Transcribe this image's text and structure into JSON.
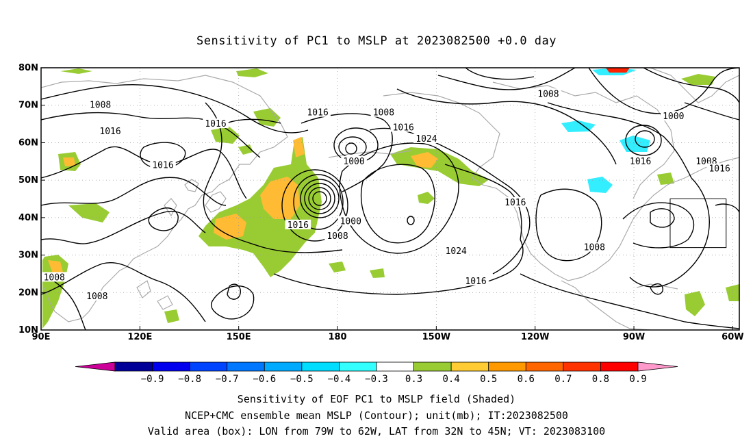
{
  "title": "Sensitivity of PC1 to MSLP at 2023082500 +0.0 day",
  "map": {
    "lon_range": [
      90,
      302
    ],
    "lat_range": [
      10,
      80
    ],
    "x_ticks": [
      {
        "lon": 90,
        "label": "90E"
      },
      {
        "lon": 120,
        "label": "120E"
      },
      {
        "lon": 150,
        "label": "150E"
      },
      {
        "lon": 180,
        "label": "180"
      },
      {
        "lon": 210,
        "label": "150W"
      },
      {
        "lon": 240,
        "label": "120W"
      },
      {
        "lon": 270,
        "label": "90W"
      },
      {
        "lon": 300,
        "label": "60W"
      }
    ],
    "y_ticks": [
      {
        "lat": 80,
        "label": "80N"
      },
      {
        "lat": 70,
        "label": "70N"
      },
      {
        "lat": 60,
        "label": "60N"
      },
      {
        "lat": 50,
        "label": "50N"
      },
      {
        "lat": 40,
        "label": "40N"
      },
      {
        "lat": 30,
        "label": "30N"
      },
      {
        "lat": 20,
        "label": "20N"
      },
      {
        "lat": 10,
        "label": "10N"
      }
    ],
    "valid_box": {
      "lon": [
        281,
        298
      ],
      "lat": [
        32,
        45
      ]
    },
    "contour_labels": [
      {
        "lon": 108,
        "lat": 70,
        "text": "1008"
      },
      {
        "lon": 111,
        "lat": 63,
        "text": "1016"
      },
      {
        "lon": 143,
        "lat": 65,
        "text": "1016"
      },
      {
        "lon": 127,
        "lat": 54,
        "text": "1016"
      },
      {
        "lon": 94,
        "lat": 24,
        "text": "1008"
      },
      {
        "lon": 107,
        "lat": 19,
        "text": "1008"
      },
      {
        "lon": 174,
        "lat": 68,
        "text": "1016"
      },
      {
        "lon": 194,
        "lat": 68,
        "text": "1008"
      },
      {
        "lon": 200,
        "lat": 64,
        "text": "1016"
      },
      {
        "lon": 207,
        "lat": 61,
        "text": "1024"
      },
      {
        "lon": 185,
        "lat": 55,
        "text": "1000"
      },
      {
        "lon": 168,
        "lat": 38,
        "text": "1016"
      },
      {
        "lon": 184,
        "lat": 39,
        "text": "1000"
      },
      {
        "lon": 180,
        "lat": 35,
        "text": "1008"
      },
      {
        "lon": 234,
        "lat": 44,
        "text": "1016"
      },
      {
        "lon": 258,
        "lat": 32,
        "text": "1008"
      },
      {
        "lon": 216,
        "lat": 31,
        "text": "1024"
      },
      {
        "lon": 222,
        "lat": 23,
        "text": "1016"
      },
      {
        "lon": 244,
        "lat": 73,
        "text": "1008"
      },
      {
        "lon": 282,
        "lat": 67,
        "text": "1000"
      },
      {
        "lon": 272,
        "lat": 55,
        "text": "1016"
      },
      {
        "lon": 292,
        "lat": 55,
        "text": "1008"
      },
      {
        "lon": 296,
        "lat": 53,
        "text": "1016"
      },
      {
        "lon": 307,
        "lat": 68,
        "text": "1016"
      }
    ],
    "positive_color": "#99cc33",
    "orange_color": "#ffbb33",
    "cyan_color": "#33eeff"
  },
  "colorbar": {
    "labels": [
      "−0.9",
      "−0.8",
      "−0.7",
      "−0.6",
      "−0.5",
      "−0.4",
      "−0.3",
      "0.3",
      "0.4",
      "0.5",
      "0.6",
      "0.7",
      "0.8",
      "0.9"
    ],
    "low_color": "#cc0099",
    "high_color": "#ff99cc",
    "colors": [
      "#000099",
      "#0000ee",
      "#0044ff",
      "#0077ff",
      "#00aaff",
      "#00ddff",
      "#33ffff",
      "#ffffff",
      "#99cc33",
      "#ffcc33",
      "#ff9900",
      "#ff6600",
      "#ff3300",
      "#ff0000"
    ]
  },
  "captions": [
    "Sensitivity of EOF PC1 to MSLP field (Shaded)",
    "NCEP+CMC ensemble mean MSLP (Contour); unit(mb); IT:2023082500",
    "Valid area (box): LON from 79W to 62W, LAT from 32N to 45N; VT: 2023083100"
  ]
}
